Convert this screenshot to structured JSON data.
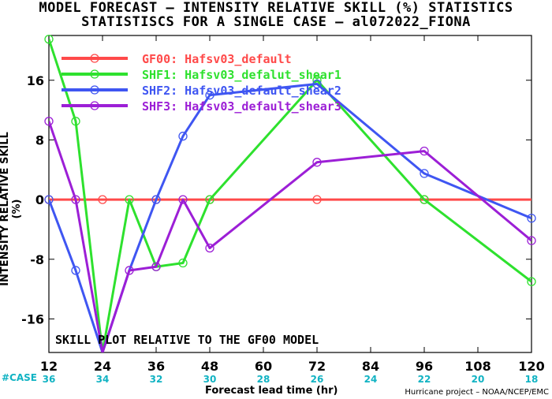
{
  "title_line1": "MODEL FORECAST – INTENSITY RELATIVE SKILL (%) STATISTICS",
  "title_line2": "STATISTISCS FOR A SINGLE CASE – al072022_FIONA",
  "annotation": "SKILL PLOT RELATIVE TO THE GF00 MODEL",
  "credit": "Hurricane project – NOAA/NCEP/EMC",
  "case_label": "#CASE",
  "colors": {
    "GF00": "#ff4a4a",
    "SHF1": "#2ee12e",
    "SHF2": "#3f56f2",
    "SHF3": "#9c1fd6",
    "zero_line": "#7a1414",
    "case_text": "#11b3c3"
  },
  "chart_data": {
    "type": "line",
    "xlabel": "Forecast lead time (hr)",
    "ylabel": "INTENSITY RELATIVE SKILL (%)",
    "xlim": [
      12,
      120
    ],
    "ylim": [
      -20.5,
      22
    ],
    "x_ticks": [
      12,
      24,
      36,
      48,
      60,
      72,
      84,
      96,
      108,
      120
    ],
    "y_ticks": [
      -16,
      -8,
      0,
      8,
      16
    ],
    "case_counts": [
      36,
      34,
      32,
      30,
      28,
      26,
      24,
      22,
      20,
      18
    ],
    "legend_position": "top-left",
    "grid": false,
    "series": [
      {
        "name": "GF00: Hafsv03_default",
        "x": [
          12,
          24,
          36,
          48,
          60,
          72,
          84,
          96,
          108,
          120
        ],
        "y": [
          0,
          0,
          0,
          0,
          0,
          0,
          0,
          0,
          0,
          0
        ],
        "markers_at": [
          12,
          24,
          36,
          48,
          72,
          96
        ]
      },
      {
        "name": "SHF1: Hafsv03_defalut_shear1",
        "x": [
          12,
          18,
          24,
          30,
          36,
          42,
          48,
          72,
          96,
          120
        ],
        "y": [
          21.5,
          10.5,
          -20.5,
          0,
          -9,
          -8.5,
          0,
          16,
          0,
          -11
        ],
        "markers_at": [
          12,
          18,
          30,
          36,
          42,
          48,
          72,
          96,
          120
        ]
      },
      {
        "name": "SHF2: Hafsv03_default_shear2",
        "x": [
          12,
          18,
          24,
          30,
          36,
          42,
          48,
          72,
          96,
          120
        ],
        "y": [
          0,
          -9.5,
          -20.5,
          -9.5,
          0,
          8.5,
          14,
          15.5,
          3.5,
          -2.5
        ],
        "markers_at": [
          12,
          18,
          36,
          42,
          48,
          72,
          96,
          120
        ]
      },
      {
        "name": "SHF3: Hafsv03_default_shear3",
        "x": [
          12,
          18,
          24,
          30,
          36,
          42,
          48,
          72,
          96,
          120
        ],
        "y": [
          10.5,
          0,
          -20.5,
          -9.5,
          -9,
          0,
          -6.5,
          5,
          6.5,
          -5.5
        ],
        "markers_at": [
          12,
          18,
          30,
          36,
          42,
          48,
          72,
          96,
          120
        ]
      }
    ]
  }
}
